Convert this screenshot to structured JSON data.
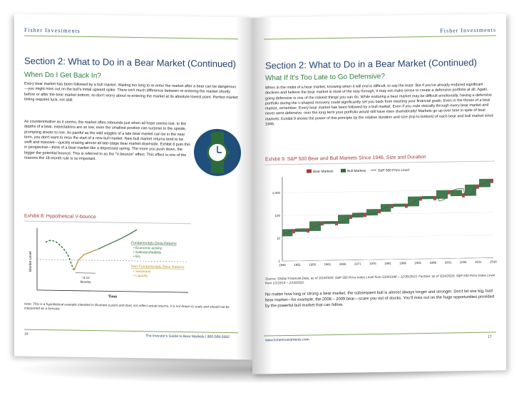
{
  "brand": "Fisher Investments",
  "left": {
    "title": "Section 2: What to Do in a Bear Market (Continued)",
    "subtitle": "When Do I Get Back In?",
    "para1": "Every bear market has been followed by a bull market. Waiting too long to re-enter the market after a bear can be dangerous—you might miss out on the bull's initial upward spike. There isn't much difference between re-entering the market shortly before or after the bear market bottom, so don't worry about re-entering the market at its absolute lowest point. Perfect market timing requires luck, not skill.",
    "para2": "As counterintuitive as it seems, the market often rebounds just when all hope seems lost. In the depths of a bear, expectations are so low, even the smallest positive can surprise to the upside, prompting stocks to rise. As painful as the wild wiggles of a late bear market can be in the near term, you don't want to miss the start of a new bull market. New bull market returns tend to be swift and massive—quickly erasing almost all late-stage bear market downside. Exhibit 8 puts this in perspective—think of a bear market like a depressed spring. The more you push down, the bigger the potential bounce. This is referred to as the \"V-bounce\" effect. This effect is one of the reasons the 18-month rule is so important.",
    "exhibit_title": "Exhibit 8: Hypothetical V-bounce",
    "chart": {
      "ylabel": "Market Level",
      "xlabel": "Time",
      "fund_title": "Fundamentals Drive Returns",
      "fund_items": [
        "• Economic activity",
        "• Sales/profitability",
        "• Etc."
      ],
      "nonfund_title": "Non-Fundamentals Drive Returns",
      "nonfund_items": [
        "• Sentiment",
        "• Liquidity"
      ],
      "months1": "~3-12",
      "months2": "Months"
    },
    "note": "Note: This is a hypothetical example intended to illustrate a point and does not reflect actual returns, it is not drawn to scale and should not be interpreted as a forecast.",
    "page_number": "16",
    "footer": "The Investor's Guide to Bear Markets  |  800-568-5082"
  },
  "right": {
    "title": "Section 2: What to Do in a Bear Market (Continued)",
    "subtitle": "What If It's Too Late to Go Defensive?",
    "para1": "When in the midst of a bear market, knowing when it will end is difficult, to say the least. But if you've already endured significant declines and believe the bear market is most of the way through, it may not make sense to create a defensive portfolio at all. Again, going defensive is one of the riskiest things you can do. While enduring a bear market may be difficult emotionally, having a defensive portfolio during the v-shaped recovery could significantly set you back from meeting your financial goals. Even in the throes of a bear market, remember: Every bear market has been followed by a bull market. Even if you rode stoically through every bear market and never went defensive, over the long term your portfolio would still have risen dramatically! Markets go up over time in spite of bear markets. Exhibit 9 shows the power of this principle by the relative duration and size (top to bottom) of each bear and bull market since 1946.",
    "exhibit_title": "Exhibit 9: S&P 500 Bear and Bull Markets Since 1946, Size and Duration",
    "legend": [
      "Bear Markets",
      "Bull Markets",
      "S&P 500 Price Level"
    ],
    "source": "Source: Global Financial Data, as of 3/24/2020; S&P 500 Price Index Level from 5/29/1946 – 12/30/2013; FactSet, as of 3/24/2020; S&P 500 Price Index Level from 1/1/2014 – 2/19/2020.",
    "para2": "No matter how long or strong a bear market, the subsequent bull is almost always longer and stronger. Don't let one big, bad bear market—for example, the 2008 – 2009 bear—scare you out of stocks. You'll miss out on the huge opportunities provided by the powerful bull market that can follow.",
    "website": "www.fisherinvestments.com",
    "page_number": "17"
  },
  "chart_data": {
    "type": "bar",
    "title": "Exhibit 9: S&P 500 Bear and Bull Markets Since 1946, Size and Duration",
    "y_scale": "log",
    "ylim": [
      1,
      5000
    ],
    "y_ticks": [
      "1",
      "10",
      "100",
      "1,000"
    ],
    "x_ticks": [
      "1946",
      "1951",
      "1956",
      "1961",
      "1966",
      "1971",
      "1976",
      "1981",
      "1986",
      "1991",
      "1996",
      "2001",
      "2006",
      "2011",
      "2016"
    ],
    "series": [
      {
        "name": "Bear Markets",
        "color": "#a33a3a"
      },
      {
        "name": "Bull Markets",
        "color": "#2e6b3a"
      },
      {
        "name": "S&P 500 Price Level",
        "color": "#555555"
      }
    ]
  }
}
